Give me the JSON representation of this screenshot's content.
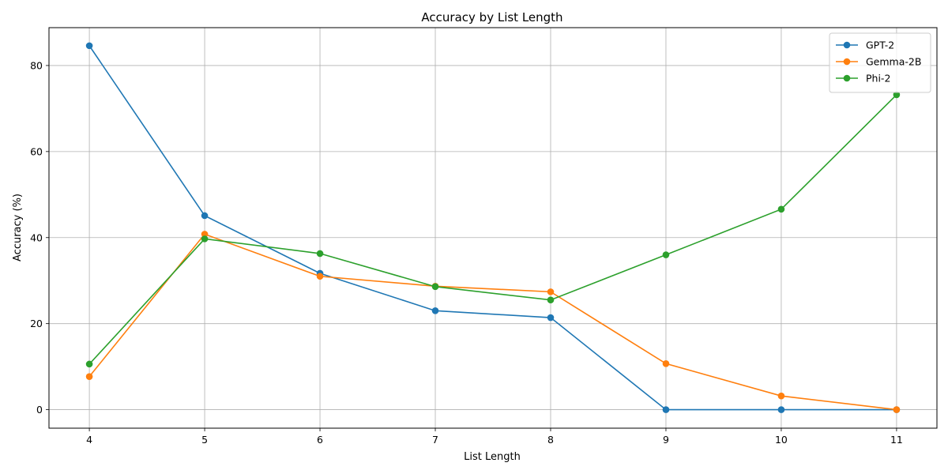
{
  "chart_data": {
    "type": "line",
    "title": "Accuracy by List Length",
    "xlabel": "List Length",
    "ylabel": "Accuracy (%)",
    "x": [
      4,
      5,
      6,
      7,
      8,
      9,
      10,
      11
    ],
    "xlim": [
      3.65,
      11.35
    ],
    "ylim": [
      -4.3,
      88.8
    ],
    "xticks": [
      "4",
      "5",
      "6",
      "7",
      "8",
      "9",
      "10",
      "11"
    ],
    "yticks": [
      0,
      20,
      40,
      60,
      80
    ],
    "grid": true,
    "legend_position": "top-right",
    "series": [
      {
        "name": "GPT-2",
        "color": "#1f77b4",
        "values": [
          84.6,
          45.1,
          31.7,
          23.0,
          21.4,
          0.0,
          0.0,
          0.0
        ]
      },
      {
        "name": "Gemma-2B",
        "color": "#ff7f0e",
        "values": [
          7.7,
          40.8,
          31.0,
          28.7,
          27.4,
          10.7,
          3.2,
          0.0
        ]
      },
      {
        "name": "Phi-2",
        "color": "#2ca02c",
        "values": [
          10.6,
          39.7,
          36.3,
          28.6,
          25.5,
          36.0,
          46.6,
          73.2
        ]
      }
    ]
  }
}
